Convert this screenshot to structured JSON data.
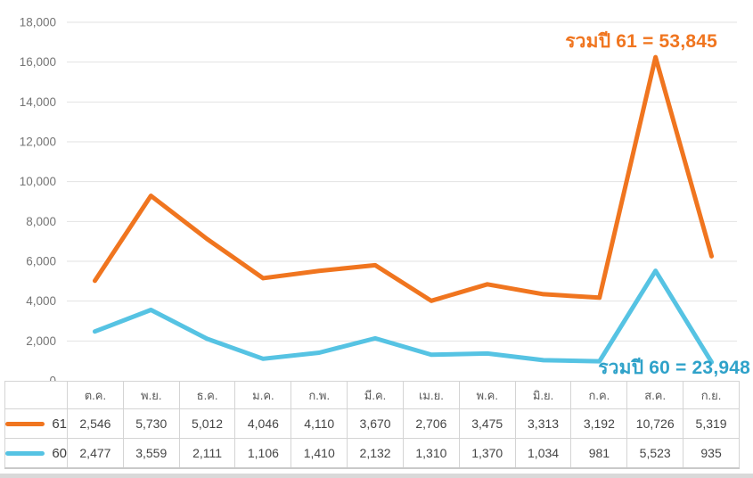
{
  "chart_data": {
    "type": "line",
    "stacked": true,
    "title": "",
    "xlabel": "",
    "ylabel": "",
    "grid": true,
    "legend_position": "table-left",
    "categories": [
      "ต.ค.",
      "พ.ย.",
      "ธ.ค.",
      "ม.ค.",
      "ก.พ.",
      "มี.ค.",
      "เม.ย.",
      "พ.ค.",
      "มิ.ย.",
      "ก.ค.",
      "ส.ค.",
      "ก.ย."
    ],
    "series": [
      {
        "name": "61",
        "color": "#f0751f",
        "total": 53845,
        "values": [
          2546,
          5730,
          5012,
          4046,
          4110,
          3670,
          2706,
          3475,
          3313,
          3192,
          10726,
          5319
        ]
      },
      {
        "name": "60",
        "color": "#56c3e3",
        "total": 23948,
        "values": [
          2477,
          3559,
          2111,
          1106,
          1410,
          2132,
          1310,
          1370,
          1034,
          981,
          5523,
          935
        ]
      }
    ],
    "y_axis": {
      "min": 0,
      "max": 18000,
      "tick_step": 2000,
      "tick_labels": [
        "0",
        "2,000",
        "4,000",
        "6,000",
        "8,000",
        "10,000",
        "12,000",
        "14,000",
        "16,000",
        "18,000"
      ]
    },
    "annotations": [
      {
        "text": "รวมปี 61 = 53,845",
        "color": "#f0751f"
      },
      {
        "text": "รวมปี 60 = 23,948",
        "color": "#2fa2c9"
      }
    ]
  },
  "style_colors": {
    "gridline": "#e2e2e2",
    "axis_label": "#757575",
    "divider_bar": "#d9d9d9"
  }
}
